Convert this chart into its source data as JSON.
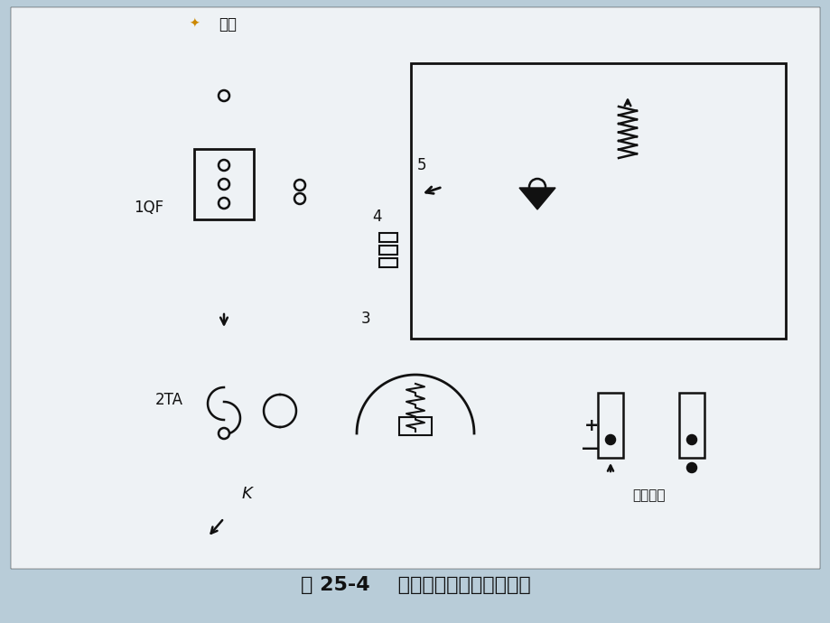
{
  "title": "图 25-4    过电流保护的原理示意图",
  "bg_color": "#b8ccd8",
  "paper_color": "#eef2f5",
  "line_color": "#111111",
  "title_fontsize": 16,
  "busbar_label": "母线",
  "label_1QF": "1QF",
  "label_2TA": "2TA",
  "label_K": "K",
  "label_3": "3",
  "label_4": "4",
  "label_5": "5",
  "label_power": "操作电源",
  "label_plus": "+",
  "label_minus": "—"
}
